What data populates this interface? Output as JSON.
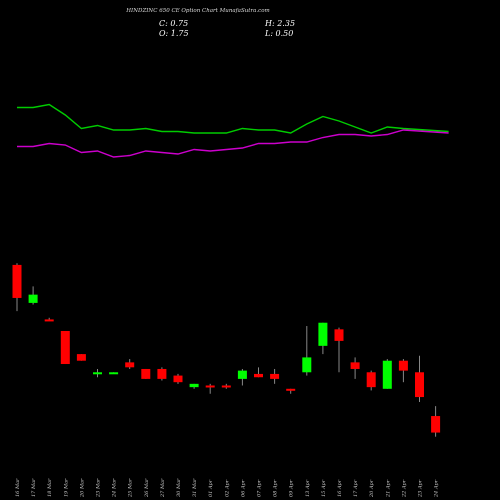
{
  "chart_data": {
    "type": "candlestick",
    "title": "HINDZINC 650  CE Option  Chart MunafaSutra.com",
    "ohlc_summary": {
      "close_label": "C: 0.75",
      "high_label": "H: 2.35",
      "open_label": "O: 1.75",
      "low_label": "L: 0.50"
    },
    "x_tick_labels": [
      "16 Mar",
      "17 Mar",
      "18 Mar",
      "19 Mar",
      "20 Mar",
      "23 Mar",
      "24 Mar",
      "25 Mar",
      "26 Mar",
      "27 Mar",
      "30 Mar",
      "31 Mar",
      "01 Apr",
      "02 Apr",
      "06 Apr",
      "07 Apr",
      "08 Apr",
      "09 Apr",
      "13 Apr",
      "15 Apr",
      "16 Apr",
      "17 Apr",
      "20 Apr",
      "21 Apr",
      "22 Apr",
      "23 Apr",
      "24 Apr"
    ],
    "ylim": [
      0.3,
      11.5
    ],
    "candles": [
      {
        "date": "16 Mar",
        "open": 10.9,
        "high": 11.0,
        "low": 8.1,
        "close": 8.9
      },
      {
        "date": "17 Mar",
        "open": 8.6,
        "high": 9.6,
        "low": 8.5,
        "close": 9.1
      },
      {
        "date": "18 Mar",
        "open": 7.6,
        "high": 7.7,
        "low": 7.5,
        "close": 7.5
      },
      {
        "date": "19 Mar",
        "open": 6.9,
        "high": 6.9,
        "low": 4.9,
        "close": 4.9
      },
      {
        "date": "20 Mar",
        "open": 5.5,
        "high": 5.5,
        "low": 5.1,
        "close": 5.1
      },
      {
        "date": "23 Mar",
        "open": 4.3,
        "high": 4.6,
        "low": 4.1,
        "close": 4.4
      },
      {
        "date": "24 Mar",
        "open": 4.3,
        "high": 4.4,
        "low": 4.3,
        "close": 4.4
      },
      {
        "date": "25 Mar",
        "open": 5.0,
        "high": 5.2,
        "low": 4.6,
        "close": 4.7
      },
      {
        "date": "26 Mar",
        "open": 4.6,
        "high": 4.6,
        "low": 4.0,
        "close": 4.0
      },
      {
        "date": "27 Mar",
        "open": 4.6,
        "high": 4.7,
        "low": 3.9,
        "close": 4.0
      },
      {
        "date": "30 Mar",
        "open": 4.2,
        "high": 4.3,
        "low": 3.7,
        "close": 3.8
      },
      {
        "date": "31 Mar",
        "open": 3.5,
        "high": 3.7,
        "low": 3.4,
        "close": 3.7
      },
      {
        "date": "01 Apr",
        "open": 3.6,
        "high": 3.7,
        "low": 3.1,
        "close": 3.5
      },
      {
        "date": "02 Apr",
        "open": 3.6,
        "high": 3.7,
        "low": 3.4,
        "close": 3.5
      },
      {
        "date": "06 Apr",
        "open": 4.0,
        "high": 4.6,
        "low": 3.6,
        "close": 4.5
      },
      {
        "date": "07 Apr",
        "open": 4.3,
        "high": 4.7,
        "low": 4.1,
        "close": 4.1
      },
      {
        "date": "08 Apr",
        "open": 4.3,
        "high": 4.6,
        "low": 3.7,
        "close": 4.0
      },
      {
        "date": "09 Apr",
        "open": 3.4,
        "high": 3.4,
        "low": 3.1,
        "close": 3.3
      },
      {
        "date": "13 Apr",
        "open": 4.4,
        "high": 7.2,
        "low": 4.2,
        "close": 5.3
      },
      {
        "date": "15 Apr",
        "open": 6.0,
        "high": 7.4,
        "low": 5.5,
        "close": 7.4
      },
      {
        "date": "16 Apr",
        "open": 7.0,
        "high": 7.1,
        "low": 4.4,
        "close": 6.3
      },
      {
        "date": "17 Apr",
        "open": 5.0,
        "high": 5.3,
        "low": 4.0,
        "close": 4.6
      },
      {
        "date": "20 Apr",
        "open": 4.4,
        "high": 4.5,
        "low": 3.3,
        "close": 3.5
      },
      {
        "date": "21 Apr",
        "open": 3.4,
        "high": 5.2,
        "low": 3.4,
        "close": 5.1
      },
      {
        "date": "22 Apr",
        "open": 5.1,
        "high": 5.2,
        "low": 3.8,
        "close": 4.5
      },
      {
        "date": "23 Apr",
        "open": 4.4,
        "high": 5.4,
        "low": 2.6,
        "close": 2.9
      },
      {
        "date": "24 Apr",
        "open": 1.75,
        "high": 2.35,
        "low": 0.5,
        "close": 0.75
      }
    ],
    "colors": {
      "up": "#00ff00",
      "down": "#ff0000",
      "background": "#000000",
      "line1": "#00cc00",
      "line2": "#cc00cc",
      "wick": "#888888",
      "text": "#ffffff"
    },
    "lines_ylim": [
      0,
      100
    ],
    "lines": [
      {
        "color_key": "line1",
        "values": [
          85,
          85,
          87,
          80,
          71,
          73,
          70,
          70,
          71,
          69,
          69,
          68,
          68,
          68,
          71,
          70,
          70,
          68,
          74,
          79,
          76,
          72,
          68,
          72,
          71,
          69
        ]
      },
      {
        "color_key": "line2",
        "values": [
          59,
          59,
          61,
          60,
          55,
          56,
          52,
          53,
          56,
          55,
          54,
          57,
          56,
          57,
          58,
          61,
          61,
          62,
          62,
          65,
          67,
          67,
          66,
          67,
          70,
          68
        ]
      }
    ]
  }
}
